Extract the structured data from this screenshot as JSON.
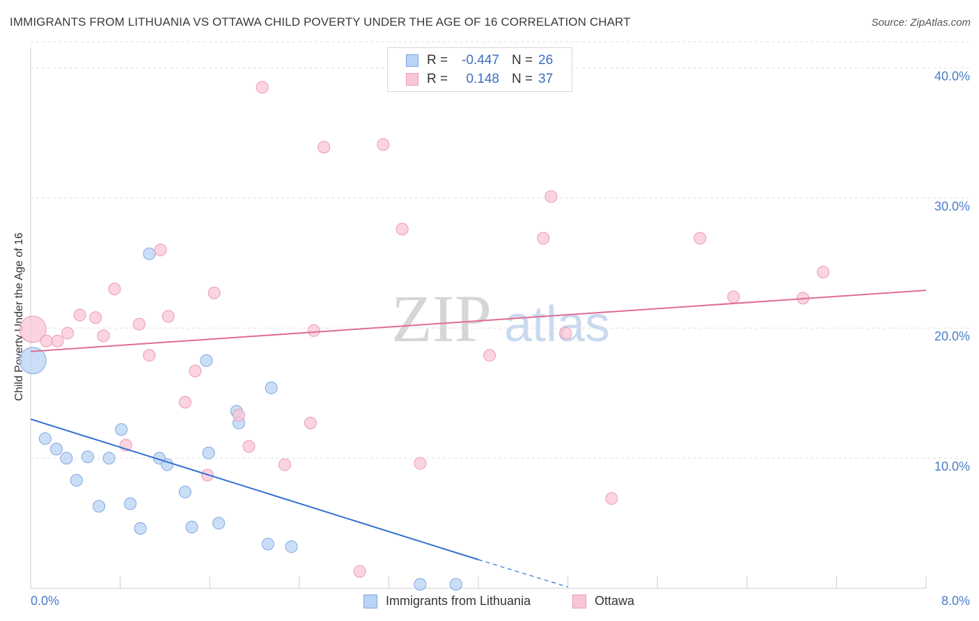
{
  "title": "IMMIGRANTS FROM LITHUANIA VS OTTAWA CHILD POVERTY UNDER THE AGE OF 16 CORRELATION CHART",
  "source": "Source: ZipAtlas.com",
  "watermark": {
    "zip": "ZIP",
    "atlas": "atlas"
  },
  "colors": {
    "blue_fill": "#b9d3f5",
    "blue_stroke": "#7ea7dd",
    "blue_line": "#2e6fd0",
    "pink_fill": "#f9c6d5",
    "pink_stroke": "#eb9ab3",
    "pink_line": "#e06c94",
    "tick_text": "#4a7cc9",
    "grid": "#dddddd"
  },
  "stats": {
    "rows": [
      {
        "r_label": "R =",
        "r_value": "-0.447",
        "n_label": "N =",
        "n_value": "26"
      },
      {
        "r_label": "R =",
        "r_value": "0.148",
        "n_label": "N =",
        "n_value": "37"
      }
    ]
  },
  "legend": {
    "series1": "Immigrants from Lithuania",
    "series2": "Ottawa"
  },
  "chart_data": {
    "type": "scatter",
    "title": "IMMIGRANTS FROM LITHUANIA VS OTTAWA CHILD POVERTY UNDER THE AGE OF 16 CORRELATION CHART",
    "xlabel": "",
    "ylabel": "Child Poverty Under the Age of 16",
    "xlim": [
      0,
      8
    ],
    "ylim": [
      0,
      42
    ],
    "x_tick_labels": [
      "0.0%",
      "8.0%"
    ],
    "y_ticks": [
      10,
      20,
      30,
      40
    ],
    "y_tick_labels": [
      "10.0%",
      "20.0%",
      "30.0%",
      "40.0%"
    ],
    "grid": true,
    "legend_position": "bottom",
    "series": [
      {
        "name": "Immigrants from Lithuania",
        "color": "#b9d3f5",
        "points": [
          {
            "x": 0.02,
            "y": 17.5,
            "big": true
          },
          {
            "x": 0.13,
            "y": 11.5
          },
          {
            "x": 0.23,
            "y": 10.7
          },
          {
            "x": 0.32,
            "y": 10.0
          },
          {
            "x": 0.41,
            "y": 8.3
          },
          {
            "x": 0.51,
            "y": 10.1
          },
          {
            "x": 0.61,
            "y": 6.3
          },
          {
            "x": 0.7,
            "y": 10.0
          },
          {
            "x": 0.81,
            "y": 12.2
          },
          {
            "x": 0.89,
            "y": 6.5
          },
          {
            "x": 0.98,
            "y": 4.6
          },
          {
            "x": 1.06,
            "y": 25.7
          },
          {
            "x": 1.15,
            "y": 10.0
          },
          {
            "x": 1.22,
            "y": 9.5
          },
          {
            "x": 1.38,
            "y": 7.4
          },
          {
            "x": 1.44,
            "y": 4.7
          },
          {
            "x": 1.68,
            "y": 5.0
          },
          {
            "x": 1.57,
            "y": 17.5
          },
          {
            "x": 1.59,
            "y": 10.4
          },
          {
            "x": 1.84,
            "y": 13.6
          },
          {
            "x": 1.86,
            "y": 12.7
          },
          {
            "x": 2.12,
            "y": 3.4
          },
          {
            "x": 2.15,
            "y": 15.4
          },
          {
            "x": 2.33,
            "y": 3.2
          },
          {
            "x": 3.48,
            "y": 0.3
          },
          {
            "x": 3.8,
            "y": 0.3
          }
        ],
        "trend": {
          "x0": 0,
          "y0": 13.0,
          "x1": 4.0,
          "y1": 2.2,
          "dash_x1": 4.8,
          "dash_y1": 0.1
        }
      },
      {
        "name": "Ottawa",
        "color": "#f9c6d5",
        "points": [
          {
            "x": 0.02,
            "y": 19.9,
            "big": true
          },
          {
            "x": 0.14,
            "y": 19.0
          },
          {
            "x": 0.24,
            "y": 19.0
          },
          {
            "x": 0.33,
            "y": 19.6
          },
          {
            "x": 0.44,
            "y": 21.0
          },
          {
            "x": 0.58,
            "y": 20.8
          },
          {
            "x": 0.65,
            "y": 19.4
          },
          {
            "x": 0.75,
            "y": 23.0
          },
          {
            "x": 0.85,
            "y": 11.0
          },
          {
            "x": 0.97,
            "y": 20.3
          },
          {
            "x": 1.06,
            "y": 17.9
          },
          {
            "x": 1.16,
            "y": 26.0
          },
          {
            "x": 1.23,
            "y": 20.9
          },
          {
            "x": 1.38,
            "y": 14.3
          },
          {
            "x": 1.47,
            "y": 16.7
          },
          {
            "x": 1.58,
            "y": 8.7
          },
          {
            "x": 1.64,
            "y": 22.7
          },
          {
            "x": 1.86,
            "y": 13.3
          },
          {
            "x": 1.95,
            "y": 10.9
          },
          {
            "x": 2.07,
            "y": 38.5
          },
          {
            "x": 2.27,
            "y": 9.5
          },
          {
            "x": 2.5,
            "y": 12.7
          },
          {
            "x": 2.53,
            "y": 19.8
          },
          {
            "x": 2.62,
            "y": 33.9
          },
          {
            "x": 2.94,
            "y": 1.3
          },
          {
            "x": 3.15,
            "y": 34.1
          },
          {
            "x": 3.32,
            "y": 27.6
          },
          {
            "x": 3.48,
            "y": 9.6
          },
          {
            "x": 4.1,
            "y": 17.9
          },
          {
            "x": 4.58,
            "y": 26.9
          },
          {
            "x": 4.65,
            "y": 30.1
          },
          {
            "x": 4.78,
            "y": 19.6
          },
          {
            "x": 5.19,
            "y": 6.9
          },
          {
            "x": 5.98,
            "y": 26.9
          },
          {
            "x": 6.28,
            "y": 22.4
          },
          {
            "x": 6.9,
            "y": 22.3
          },
          {
            "x": 7.08,
            "y": 24.3
          }
        ],
        "trend": {
          "x0": 0,
          "y0": 18.2,
          "x1": 8.0,
          "y1": 22.9
        }
      }
    ]
  }
}
